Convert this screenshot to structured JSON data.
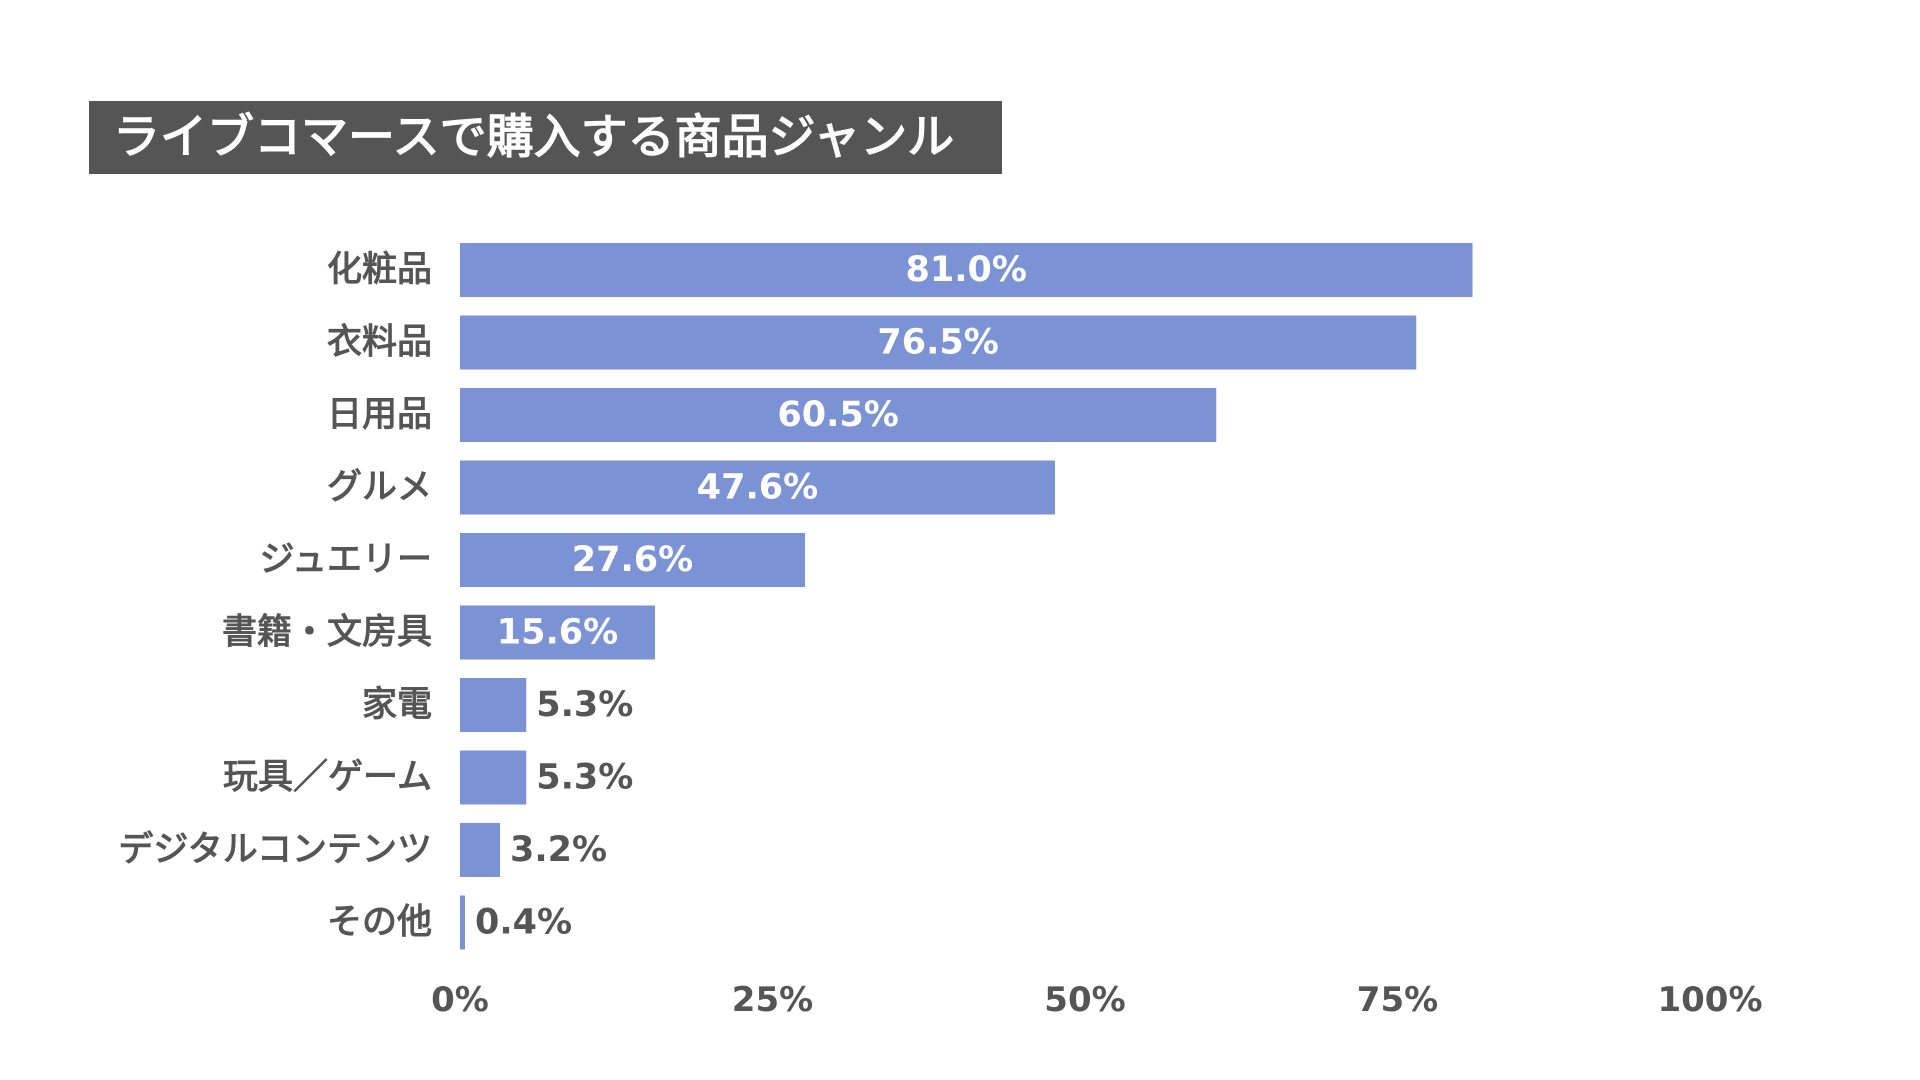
{
  "chart_data": {
    "type": "bar",
    "orientation": "horizontal",
    "title": "ライブコマースで購入する商品ジャンル",
    "categories": [
      "化粧品",
      "衣料品",
      "日用品",
      "グルメ",
      "ジュエリー",
      "書籍・文房具",
      "家電",
      "玩具／ゲーム",
      "デジタルコンテンツ",
      "その他"
    ],
    "values": [
      81.0,
      76.5,
      60.5,
      47.6,
      27.6,
      15.6,
      5.3,
      5.3,
      3.2,
      0.4
    ],
    "value_labels": [
      "81.0%",
      "76.5%",
      "60.5%",
      "47.6%",
      "27.6%",
      "15.6%",
      "5.3%",
      "5.3%",
      "3.2%",
      "0.4%"
    ],
    "xlim": [
      0,
      100
    ],
    "x_ticks": [
      0,
      25,
      50,
      75,
      100
    ],
    "x_tick_labels": [
      "0%",
      "25%",
      "50%",
      "75%",
      "100%"
    ],
    "xlabel": "",
    "ylabel": "",
    "grid": false,
    "legend": "none",
    "colors": {
      "bar": "#7b93d4",
      "title_background": "#555555",
      "title_text": "#ffffff",
      "label_text": "#555555",
      "value_inside": "#ffffff",
      "value_outside": "#555555"
    }
  }
}
